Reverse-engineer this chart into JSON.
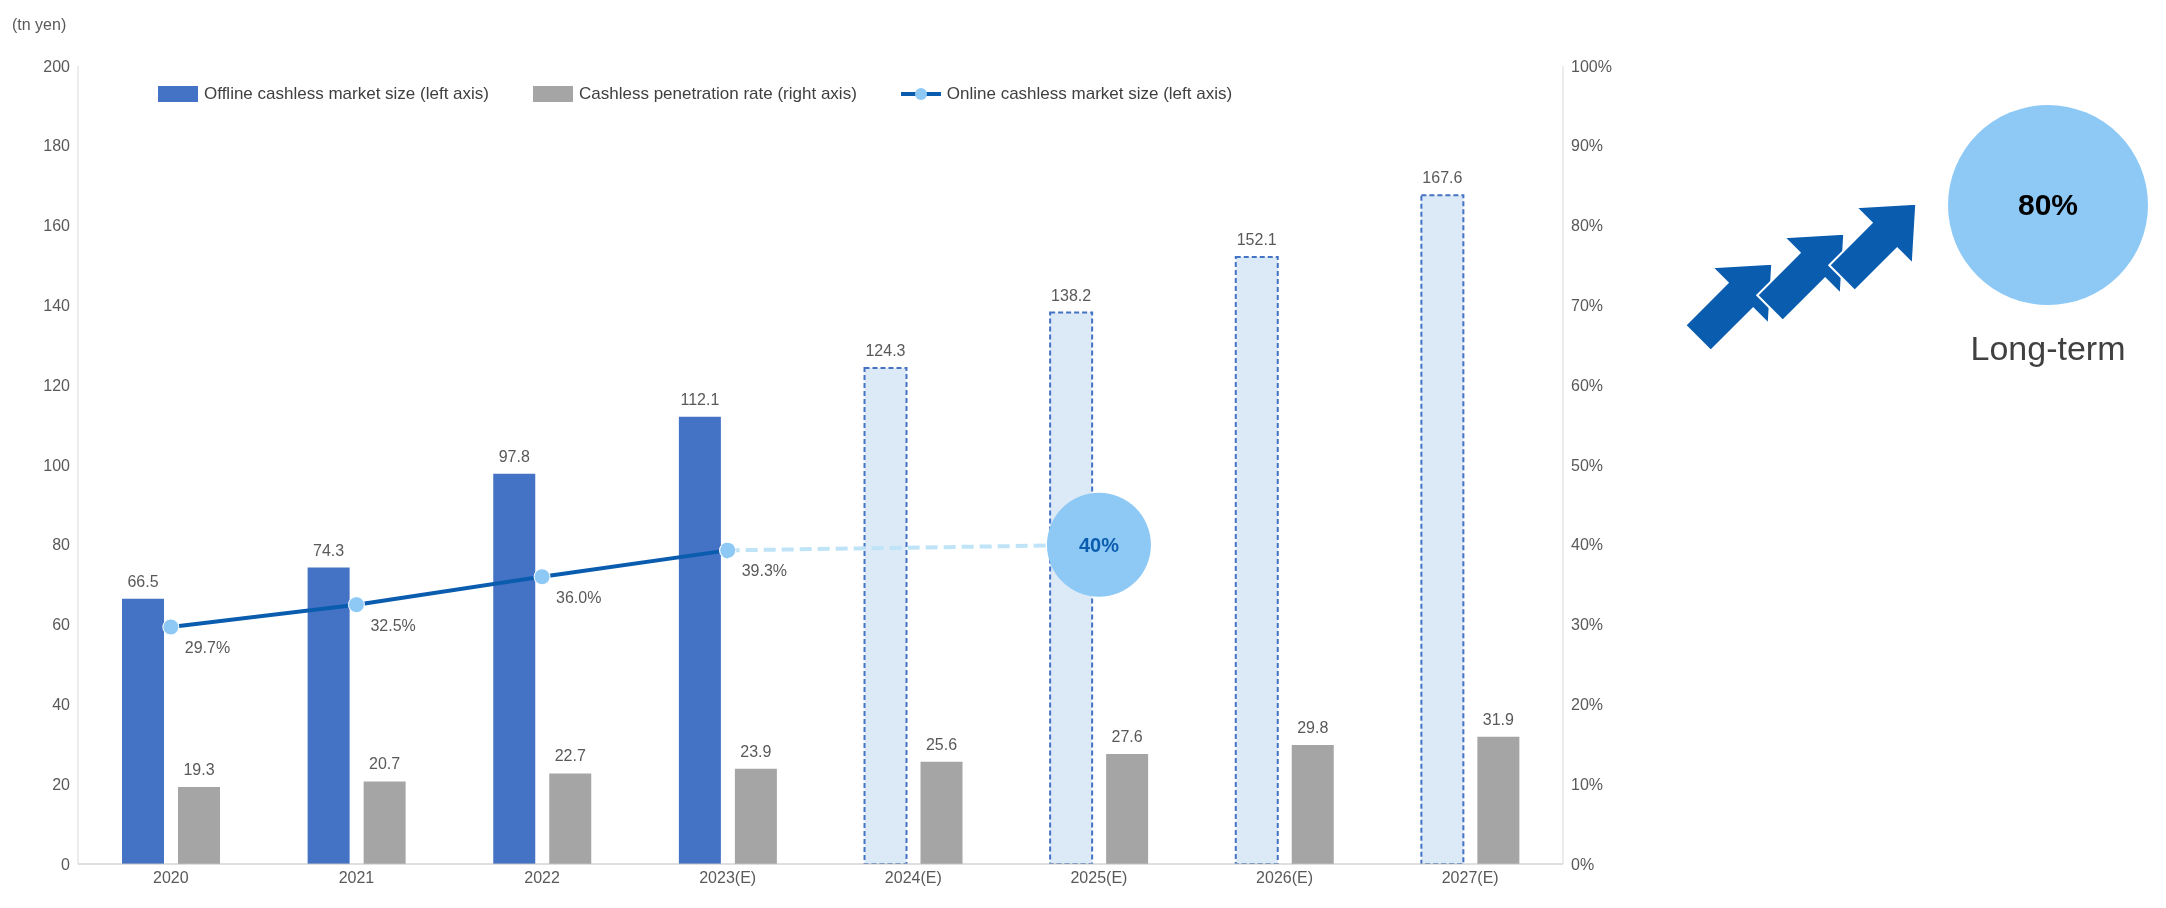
{
  "chart_data": {
    "type": "bar",
    "ylabel": "(tn yen)",
    "categories": [
      "2020",
      "2021",
      "2022",
      "2023(E)",
      "2024(E)",
      "2025(E)",
      "2026(E)",
      "2027(E)"
    ],
    "series": [
      {
        "name": "Offline cashless market size (left axis)",
        "color": "#4472c4",
        "colors": [
          "#4472c4",
          "#4472c4",
          "#4472c4",
          "#4472c4",
          "#dce9f7",
          "#dce9f7",
          "#dce9f7",
          "#dce9f7"
        ],
        "values": [
          66.5,
          74.3,
          97.8,
          112.1,
          124.3,
          138.2,
          152.1,
          167.6
        ]
      },
      {
        "name": "Cashless penetration rate (right axis)",
        "type": "bar",
        "color": "#a5a5a5",
        "values": [
          19.3,
          20.7,
          22.7,
          23.9,
          25.6,
          27.6,
          29.8,
          31.9
        ]
      },
      {
        "name": "Online cashless market size (left axis)",
        "type": "line",
        "axis": "y2",
        "color": "#0a5caf",
        "values": [
          29.7,
          32.5,
          36.0,
          39.3,
          null,
          null,
          null,
          null
        ],
        "value_labels": [
          "29.7%",
          "32.5%",
          "36.0%",
          "39.3%",
          null,
          null,
          null,
          null
        ]
      },
      {
        "type": "line",
        "axis": "y2",
        "color": "#bfe4f7",
        "line_style": "dashed",
        "values": [
          null,
          null,
          null,
          39.3,
          null,
          40,
          null,
          null
        ],
        "value_labels": [
          null,
          null,
          null,
          null,
          null,
          null,
          null,
          null
        ]
      },
      {
        "type": "scatter",
        "axis": "y2",
        "color": "#8ec9f5",
        "values": [
          null,
          null,
          null,
          null,
          null,
          40,
          null,
          null
        ],
        "value_labels": [
          null,
          null,
          null,
          null,
          null,
          "40%",
          null,
          null
        ]
      }
    ],
    "ylim": [
      0,
      200
    ],
    "yticks": [
      0,
      20,
      40,
      60,
      80,
      100,
      120,
      140,
      160,
      180,
      200
    ],
    "y2lim": [
      0,
      100
    ],
    "y2ticks": [
      {
        "value": 0,
        "label": "0%"
      },
      {
        "value": 10,
        "label": "10%"
      },
      {
        "value": 20,
        "label": "20%"
      },
      {
        "value": 30,
        "label": "30%"
      },
      {
        "value": 40,
        "label": "40%"
      },
      {
        "value": 50,
        "label": "50%"
      },
      {
        "value": 60,
        "label": "60%"
      },
      {
        "value": 70,
        "label": "70%"
      },
      {
        "value": 80,
        "label": "80%"
      },
      {
        "value": 90,
        "label": "90%"
      },
      {
        "value": 100,
        "label": "100%"
      }
    ],
    "data_labels": true,
    "marker": "circle",
    "legend": "top",
    "annotations": [
      "80%",
      "Long-term"
    ]
  }
}
